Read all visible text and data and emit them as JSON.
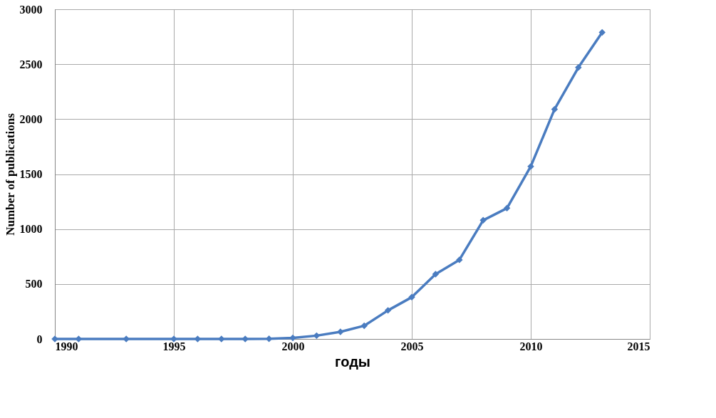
{
  "chart_data": {
    "type": "line",
    "xlabel": "годы",
    "ylabel": "Number of publications",
    "x": [
      1990,
      1991,
      1993,
      1995,
      1996,
      1997,
      1998,
      1999,
      2000,
      2001,
      2002,
      2003,
      2004,
      2005,
      2006,
      2007,
      2008,
      2009,
      2010,
      2011,
      2012,
      2013
    ],
    "series": [
      {
        "color": "#4a7cc0",
        "values": [
          0,
          0,
          0,
          0,
          0,
          0,
          0,
          2,
          10,
          30,
          65,
          120,
          260,
          380,
          590,
          720,
          1080,
          1190,
          1570,
          2090,
          2470,
          2790
        ]
      }
    ],
    "xlim": [
      1990,
      2015
    ],
    "xticks": [
      1990,
      1995,
      2000,
      2005,
      2010,
      2015
    ],
    "ylim": [
      0,
      3000
    ],
    "yticks": [
      0,
      500,
      1000,
      1500,
      2000,
      2500,
      3000
    ],
    "grid": true,
    "marker": "diamond",
    "line_style": "solid"
  }
}
